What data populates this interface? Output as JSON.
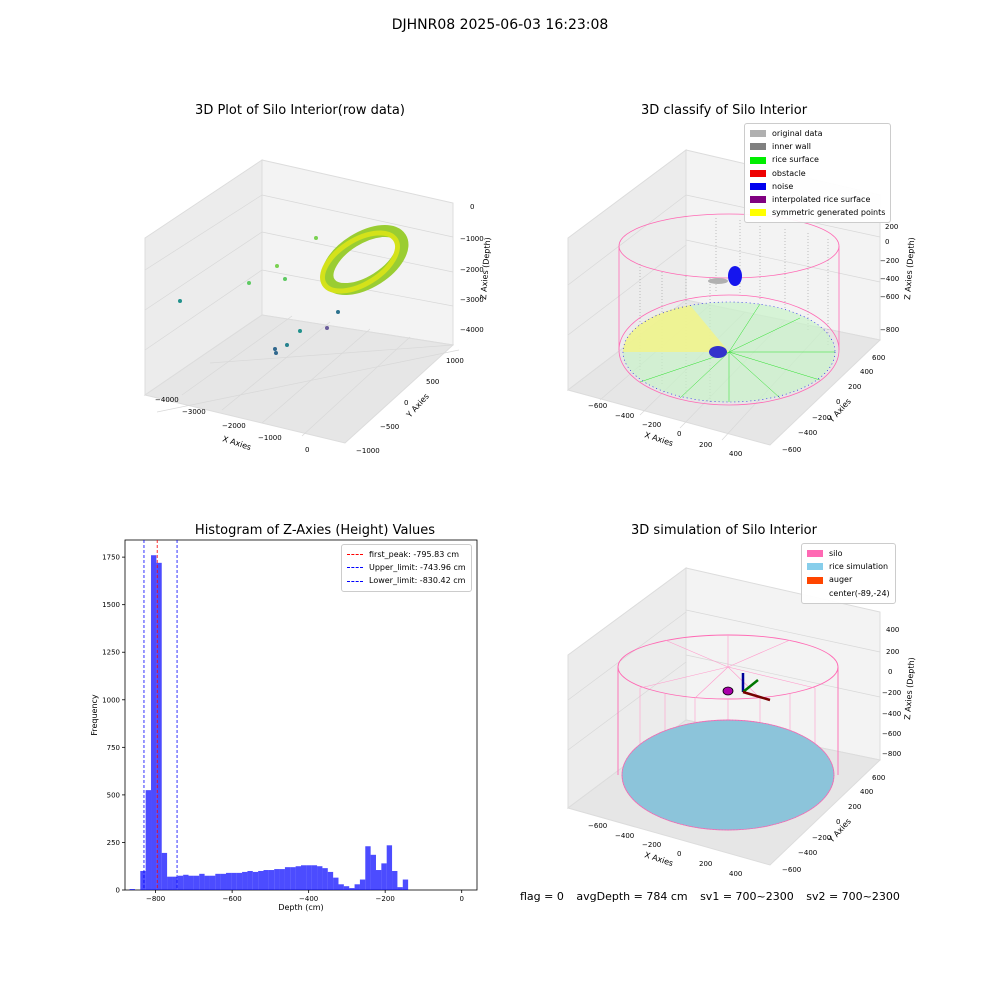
{
  "suptitle": "DJHNR08 2025-06-03 16:23:08",
  "panels": {
    "raw": {
      "title": "3D Plot of Silo Interior(row data)",
      "xlabel": "X Axies",
      "ylabel": "Y Axies",
      "zlabel": "Z Axies (Depth)",
      "xticks": [
        "−4000",
        "−3000",
        "−2000",
        "−1000",
        "0"
      ],
      "yticks": [
        "1000",
        "500",
        "0",
        "−500",
        "−1000"
      ],
      "zticks": [
        "0",
        "−1000",
        "−2000",
        "−3000",
        "−4000"
      ]
    },
    "classify": {
      "title": "3D classify of Silo Interior",
      "xlabel": "X Axies",
      "ylabel": "Y Axies",
      "zlabel": "Z Axies (Depth)",
      "xticks": [
        "−600",
        "−400",
        "−200",
        "0",
        "200",
        "400"
      ],
      "yticks": [
        "600",
        "400",
        "200",
        "0",
        "−200",
        "−400",
        "−600"
      ],
      "zticks": [
        "200",
        "0",
        "−200",
        "−400",
        "−600",
        "−800"
      ],
      "legend": [
        {
          "label": "original data",
          "color": "#b0b0b0"
        },
        {
          "label": "inner wall",
          "color": "#808080"
        },
        {
          "label": "rice surface",
          "color": "#00ee00"
        },
        {
          "label": "obstacle",
          "color": "#ee0000"
        },
        {
          "label": "noise",
          "color": "#0000ee"
        },
        {
          "label": "interpolated rice surface",
          "color": "#800080"
        },
        {
          "label": "symmetric generated points",
          "color": "#ffff00"
        }
      ]
    },
    "simulation": {
      "title": "3D simulation of Silo Interior",
      "xlabel": "X Axies",
      "ylabel": "Y Axies",
      "zlabel": "Z Axies (Depth)",
      "xticks": [
        "−600",
        "−400",
        "−200",
        "0",
        "200",
        "400"
      ],
      "yticks": [
        "600",
        "400",
        "200",
        "0",
        "−200",
        "−400",
        "−600"
      ],
      "zticks": [
        "400",
        "200",
        "0",
        "−200",
        "−400",
        "−600",
        "−800"
      ],
      "legend": [
        {
          "label": "silo",
          "color": "#ff69b4"
        },
        {
          "label": "rice simulation",
          "color": "#87ceeb"
        },
        {
          "label": "auger",
          "color": "#ff4500"
        },
        {
          "label": "center(-89,-24)",
          "color": ""
        }
      ]
    }
  },
  "chart_data": [
    {
      "type": "bar",
      "title": "Histogram of Z-Axies (Height) Values",
      "xlabel": "Depth (cm)",
      "ylabel": "Frequency",
      "xlim": [
        -880,
        40
      ],
      "ylim": [
        0,
        1840
      ],
      "xticks": [
        -800,
        -600,
        -400,
        -200,
        0
      ],
      "yticks": [
        0,
        250,
        500,
        750,
        1000,
        1250,
        1500,
        1750
      ],
      "bin_width": 14,
      "bin_start": -868,
      "values": [
        5,
        0,
        100,
        525,
        1760,
        1720,
        195,
        70,
        70,
        75,
        80,
        75,
        75,
        85,
        75,
        75,
        85,
        85,
        90,
        90,
        90,
        95,
        100,
        95,
        100,
        105,
        105,
        110,
        110,
        120,
        120,
        125,
        130,
        130,
        130,
        125,
        115,
        95,
        65,
        30,
        20,
        10,
        30,
        55,
        230,
        185,
        105,
        140,
        235,
        100,
        15,
        55
      ],
      "bar_color": "#0000ff",
      "reference_lines": [
        {
          "label": "first_peak: -795.83 cm",
          "x": -795.83,
          "color": "#ff0000"
        },
        {
          "label": "Upper_limit: -743.96 cm",
          "x": -743.96,
          "color": "#0000ff"
        },
        {
          "label": "Lower_limit: -830.42 cm",
          "x": -830.42,
          "color": "#0000ff"
        }
      ],
      "legend": "top-right",
      "grid": false
    }
  ],
  "footer": {
    "flag": "flag = 0",
    "avg": "avgDepth = 784 cm",
    "sv1": "sv1 = 700~2300",
    "sv2": "sv2 = 700~2300"
  }
}
